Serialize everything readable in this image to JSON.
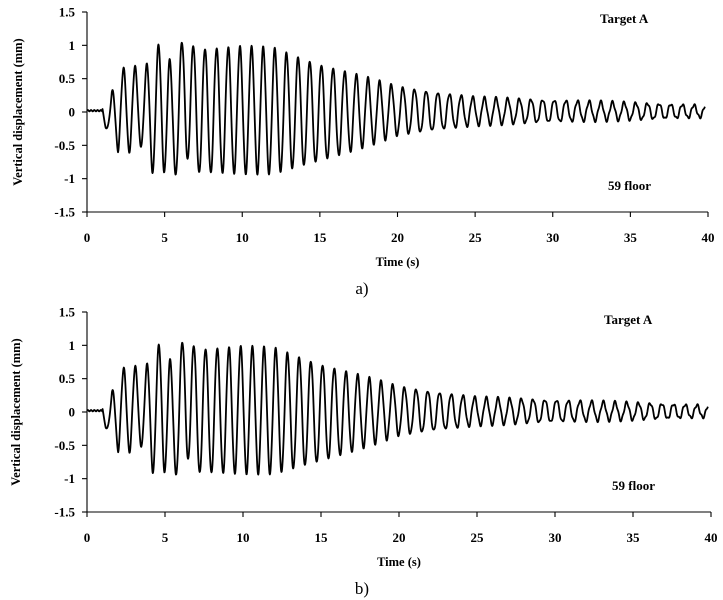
{
  "chart_data": [
    {
      "type": "line",
      "panel_label": "a)",
      "annotation_top": "Target A",
      "annotation_bottom": "59 floor",
      "xlabel": "Time (s)",
      "ylabel": "Vertical displacement (mm)",
      "xlim": [
        0,
        40
      ],
      "ylim": [
        -1.5,
        1.5
      ],
      "xticks": [
        "0",
        "5",
        "10",
        "15",
        "20",
        "25",
        "30",
        "35",
        "40"
      ],
      "yticks": [
        "1.5",
        "1",
        "0.5",
        "0",
        "-0.5",
        "-1",
        "-1.5"
      ],
      "series": [
        {
          "envelope": {
            "t": [
              0,
              1.2,
              1.6,
              2.0,
              2.7,
              3.5,
              4.2,
              5.0,
              5.5,
              6.3,
              7.0,
              10.0,
              12.0,
              15.0,
              20.0,
              25.0,
              30.0,
              35.0,
              39.8
            ],
            "peak": [
              0.02,
              0.05,
              0.3,
              0.55,
              0.75,
              0.6,
              0.82,
              1.18,
              0.6,
              1.2,
              0.95,
              0.98,
              0.96,
              0.72,
              0.38,
              0.22,
              0.18,
              0.14,
              0.1
            ],
            "trough": [
              0.02,
              -0.28,
              -0.1,
              -0.6,
              -0.6,
              -0.5,
              -0.9,
              -0.9,
              -1.05,
              -0.65,
              -0.92,
              -0.92,
              -0.92,
              -0.75,
              -0.35,
              -0.2,
              -0.15,
              -0.12,
              -0.08
            ]
          },
          "dominant_period_s": 0.75
        }
      ]
    },
    {
      "type": "line",
      "panel_label": "b)",
      "annotation_top": "Target A",
      "annotation_bottom": "59 floor",
      "xlabel": "Time (s)",
      "ylabel": "Vertical displacement (mm)",
      "xlim": [
        0,
        40
      ],
      "ylim": [
        -1.5,
        1.5
      ],
      "xticks": [
        "0",
        "5",
        "10",
        "15",
        "20",
        "25",
        "30",
        "35",
        "40"
      ],
      "yticks": [
        "1.5",
        "1",
        "0.5",
        "0",
        "-0.5",
        "-1",
        "-1.5"
      ],
      "series": [
        {
          "envelope": {
            "t": [
              0,
              1.2,
              1.6,
              2.0,
              2.7,
              3.5,
              4.2,
              5.0,
              5.5,
              6.3,
              7.0,
              10.0,
              12.0,
              15.0,
              20.0,
              25.0,
              30.0,
              35.0,
              39.8
            ],
            "peak": [
              0.02,
              0.05,
              0.3,
              0.55,
              0.75,
              0.6,
              0.82,
              1.18,
              0.6,
              1.2,
              0.95,
              0.98,
              0.96,
              0.72,
              0.38,
              0.22,
              0.18,
              0.14,
              0.1
            ],
            "trough": [
              0.02,
              -0.28,
              -0.1,
              -0.6,
              -0.6,
              -0.5,
              -0.9,
              -0.9,
              -1.05,
              -0.65,
              -0.92,
              -0.92,
              -0.92,
              -0.75,
              -0.35,
              -0.2,
              -0.15,
              -0.12,
              -0.08
            ]
          },
          "dominant_period_s": 0.75
        }
      ]
    }
  ]
}
